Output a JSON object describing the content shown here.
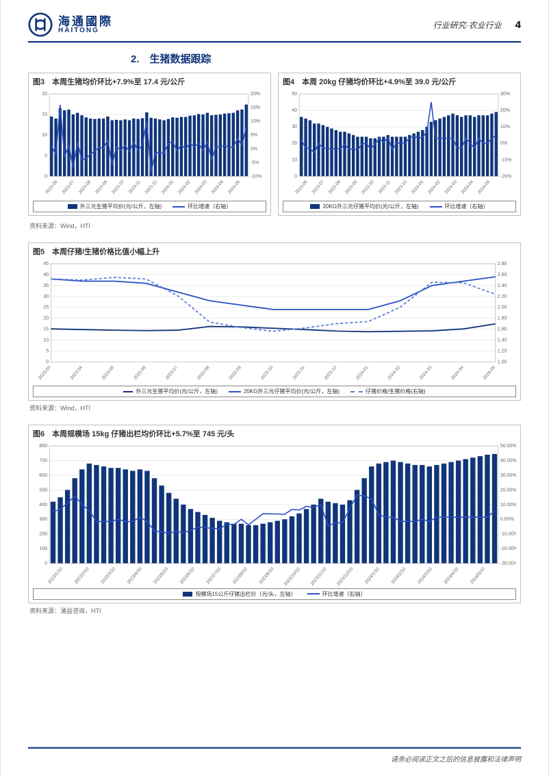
{
  "brand": {
    "cn": "海通國際",
    "en": "HAITONG",
    "logo_color": "#10357a"
  },
  "header": {
    "breadcrumb": "行业研究·农业行业",
    "page_number": "4"
  },
  "section": {
    "title": "2.　生猪数据跟踪"
  },
  "colors": {
    "brand_navy": "#10357a",
    "line_blue": "#2a4fc3",
    "dash_blue": "#5a7fd6",
    "grid": "#d9d9d9",
    "axis": "#666666",
    "background": "#ffffff",
    "border": "#bfbfbf"
  },
  "charts": {
    "fig3": {
      "title": "图3　本周生猪均价环比+7.9%至 17.4 元/公斤",
      "type": "bar_line_dual_axis",
      "x_labels": [
        "2023-06",
        "2023-07",
        "2023-08",
        "2023-09",
        "2023-10",
        "2023-11",
        "2023-12",
        "2024-01",
        "2024-02",
        "2024-03",
        "2024-04",
        "2024-05"
      ],
      "bar_series": {
        "name": "外三元生猪平均价(元/公斤，左轴)",
        "color": "#10357a",
        "values": [
          14.5,
          14.0,
          16.5,
          16.0,
          16.2,
          15.0,
          15.4,
          14.8,
          14.3,
          14.0,
          13.9,
          14.0,
          14.0,
          14.5,
          13.6,
          13.7,
          13.6,
          13.8,
          13.6,
          14.0,
          13.9,
          14.1,
          15.5,
          14.2,
          14.0,
          13.8,
          13.6,
          13.9,
          14.3,
          14.2,
          14.4,
          14.4,
          14.7,
          14.8,
          15.1,
          15.0,
          15.4,
          14.8,
          14.9,
          15.0,
          15.2,
          15.3,
          15.4,
          16.0,
          16.2,
          17.4
        ]
      },
      "line_series": {
        "name": "环比增速（右轴）",
        "color": "#2a4fc3",
        "values": [
          1.0,
          -2.0,
          16.0,
          -3.0,
          1.2,
          -7.0,
          2.5,
          -4.0,
          -3.5,
          -2.0,
          -0.8,
          0.5,
          0.2,
          3.2,
          -6.0,
          0.8,
          -0.5,
          1.3,
          -1.1,
          2.5,
          -0.7,
          1.5,
          10.0,
          -8.5,
          -1.2,
          -1.6,
          -1.5,
          2.0,
          2.6,
          -0.7,
          1.4,
          0.0,
          2.0,
          0.7,
          2.0,
          -0.6,
          2.5,
          -4.0,
          0.7,
          0.7,
          1.2,
          0.6,
          0.6,
          3.8,
          1.3,
          7.9
        ]
      },
      "ylim_left": [
        0,
        20
      ],
      "ytick_left": [
        0,
        5,
        10,
        15,
        20
      ],
      "ylim_right": [
        -10,
        20
      ],
      "ytick_right": [
        -10,
        -5,
        0,
        5,
        10,
        15,
        20
      ],
      "source": "资料来源：Wind，HTI"
    },
    "fig4": {
      "title": "图4　本周 20kg 仔猪均价环比+4.9%至 39.0 元/公斤",
      "type": "bar_line_dual_axis",
      "x_labels": [
        "2023-06",
        "2023-07",
        "2023-08",
        "2023-09",
        "2023-10",
        "2023-11",
        "2023-12",
        "2024-01",
        "2024-02",
        "2024-03",
        "2024-04",
        "2024-05"
      ],
      "bar_series": {
        "name": "20KG外三元仔猪平均价(元/公斤，左轴)",
        "color": "#10357a",
        "values": [
          36,
          35,
          34,
          32,
          32,
          31,
          30,
          29,
          28,
          27,
          27,
          26,
          25,
          24,
          24,
          24,
          23,
          23,
          24,
          24,
          25,
          24,
          24,
          24,
          24,
          25,
          26,
          27,
          28,
          30,
          33,
          34,
          35,
          36,
          37,
          38,
          37,
          36,
          37,
          37,
          36,
          37,
          37,
          37,
          38,
          39
        ]
      },
      "line_series": {
        "name": "环比增速（右轴）",
        "color": "#2a4fc3",
        "values": [
          2.0,
          -2.8,
          -3.0,
          -5.9,
          0.2,
          -3.0,
          -3.0,
          -3.5,
          -3.0,
          -3.5,
          -0.5,
          -3.5,
          -3.5,
          -4.0,
          -0.5,
          0.2,
          -3.5,
          -0.5,
          3.0,
          0.5,
          3.5,
          -4.0,
          0.1,
          0.1,
          0.1,
          3.5,
          4.0,
          3.5,
          3.5,
          7.0,
          25.0,
          3.0,
          3.0,
          3.0,
          3.0,
          3.0,
          -3.0,
          -3.0,
          3.0,
          0.0,
          -3.0,
          3.0,
          0.0,
          0.0,
          3.0,
          4.9
        ]
      },
      "ylim_left": [
        0,
        50
      ],
      "ytick_left": [
        0,
        10,
        20,
        30,
        40,
        50
      ],
      "ylim_right": [
        -20,
        30
      ],
      "ytick_right": [
        -20,
        -10,
        0,
        10,
        20,
        30
      ],
      "source": "资料来源：Wind，HTI"
    },
    "fig5": {
      "title": "图5　本周仔猪/生猪价格比值小幅上升",
      "type": "triple_line_dual_axis",
      "x_labels": [
        "2023-03",
        "2023-04",
        "2023-05",
        "2023-06",
        "2023-07",
        "2023-08",
        "2023-09",
        "2023-10",
        "2023-11",
        "2023-12",
        "2024-01",
        "2024-02",
        "2024-03",
        "2024-04",
        "2024-05"
      ],
      "series1": {
        "name": "外三元生猪平均价(元/公斤，左轴)",
        "color": "#10357a",
        "values": [
          15.1,
          14.8,
          14.5,
          14.3,
          14.5,
          16.2,
          16.0,
          15.4,
          14.8,
          14.1,
          13.8,
          14.0,
          14.2,
          15.1,
          17.4
        ]
      },
      "series2": {
        "name": "20KG外三元仔猪平均价(元/公斤，左轴)",
        "color": "#2a4fc3",
        "values": [
          38.0,
          37.0,
          37.0,
          36.0,
          32.0,
          28.0,
          26.0,
          24.0,
          24.0,
          24.0,
          24.0,
          28.0,
          35.0,
          37.0,
          39.0
        ]
      },
      "series3": {
        "name": "仔猪价格/生猪价格(右轴)",
        "color": "#5a7fd6",
        "dash": true,
        "values": [
          2.52,
          2.5,
          2.55,
          2.52,
          2.21,
          1.73,
          1.63,
          1.56,
          1.62,
          1.7,
          1.74,
          2.0,
          2.46,
          2.45,
          2.24
        ]
      },
      "ylim_left": [
        0,
        45
      ],
      "ytick_left": [
        0,
        5,
        10,
        15,
        20,
        25,
        30,
        35,
        40,
        45
      ],
      "ylim_right": [
        1.0,
        2.8
      ],
      "ytick_right": [
        1.0,
        1.2,
        1.4,
        1.6,
        1.8,
        2.0,
        2.2,
        2.4,
        2.6,
        2.8
      ],
      "source": "资料来源：Wind，HTI"
    },
    "fig6": {
      "title": "图6　本周规模场 15kg 仔猪出栏均价环比+5.7%至 745 元/头",
      "type": "bar_line_dual_axis",
      "x_labels": [
        "2023/1/10",
        "2023/2/10",
        "2023/3/10",
        "2023/4/10",
        "2023/5/10",
        "2023/6/10",
        "2023/7/10",
        "2023/8/10",
        "2023/9/10",
        "2023/10/10",
        "2023/11/10",
        "2023/12/10",
        "2024/1/10",
        "2024/2/10",
        "2024/3/10",
        "2024/4/10",
        "2024/5/10"
      ],
      "bar_series": {
        "name": "规模场15公斤仔猪出栏价（元/头，左轴）",
        "color": "#10357a",
        "values": [
          420,
          450,
          500,
          580,
          640,
          680,
          670,
          660,
          650,
          650,
          640,
          630,
          640,
          630,
          580,
          530,
          480,
          440,
          400,
          370,
          350,
          330,
          310,
          290,
          280,
          270,
          270,
          260,
          260,
          270,
          280,
          290,
          300,
          320,
          340,
          370,
          400,
          440,
          420,
          410,
          400,
          430,
          500,
          580,
          660,
          680,
          690,
          700,
          690,
          680,
          670,
          670,
          660,
          670,
          680,
          690,
          700,
          710,
          720,
          730,
          740,
          745
        ]
      },
      "line_series": {
        "name": "环比增速（右轴）",
        "color": "#2a4fc3",
        "values": [
          5.0,
          7.0,
          11.0,
          16.0,
          10.0,
          6.0,
          -1.5,
          -1.5,
          -1.5,
          0.0,
          -1.5,
          -1.6,
          1.6,
          -1.6,
          -7.9,
          -8.6,
          -9.4,
          -8.3,
          -9.1,
          -7.5,
          -5.4,
          -5.7,
          -6.1,
          -6.5,
          -3.4,
          -3.6,
          0.0,
          -3.7,
          0.0,
          3.8,
          3.7,
          3.6,
          3.4,
          6.7,
          6.3,
          8.8,
          8.1,
          10.0,
          -4.5,
          -2.4,
          -2.4,
          7.5,
          16.3,
          16.0,
          13.8,
          3.0,
          1.5,
          1.4,
          -1.4,
          -1.4,
          -1.5,
          0.0,
          -1.5,
          1.5,
          1.5,
          1.4,
          1.4,
          1.4,
          1.4,
          1.4,
          1.4,
          5.7
        ]
      },
      "ylim_left": [
        0,
        800
      ],
      "ytick_left": [
        0,
        100,
        200,
        300,
        400,
        500,
        600,
        700,
        800
      ],
      "ylim_right": [
        -30,
        50
      ],
      "ytick_right": [
        "-30.00%",
        "-20.00%",
        "-10.00%",
        "0.00%",
        "10.00%",
        "20.00%",
        "30.00%",
        "40.00%",
        "50.00%"
      ],
      "source": "资料来源：涌益咨询，HTI"
    }
  },
  "footer": {
    "disclaimer": "请务必阅读正文之后的信息披露和法律声明"
  }
}
